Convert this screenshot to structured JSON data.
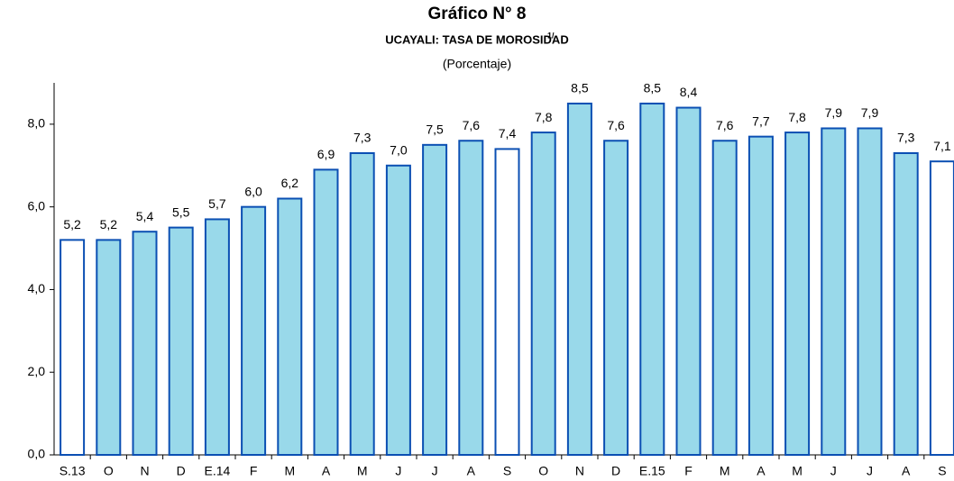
{
  "chart_data": {
    "type": "bar",
    "title": "Gráfico N° 8",
    "subtitle": "UCAYALI: TASA DE MOROSIDAD",
    "title_note": "1/",
    "unit_label": "(Porcentaje)",
    "categories": [
      "S.13",
      "O",
      "N",
      "D",
      "E.14",
      "F",
      "M",
      "A",
      "M",
      "J",
      "J",
      "A",
      "S",
      "O",
      "N",
      "D",
      "E.15",
      "F",
      "M",
      "A",
      "M",
      "J",
      "J",
      "A",
      "S"
    ],
    "values": [
      5.2,
      5.2,
      5.4,
      5.5,
      5.7,
      6.0,
      6.2,
      6.9,
      7.3,
      7.0,
      7.5,
      7.6,
      7.4,
      7.8,
      8.5,
      7.6,
      8.5,
      8.4,
      7.6,
      7.7,
      7.8,
      7.9,
      7.9,
      7.3,
      7.1
    ],
    "value_labels": [
      "5,2",
      "5,2",
      "5,4",
      "5,5",
      "5,7",
      "6,0",
      "6,2",
      "6,9",
      "7,3",
      "7,0",
      "7,5",
      "7,6",
      "7,4",
      "7,8",
      "8,5",
      "7,6",
      "8,5",
      "8,4",
      "7,6",
      "7,7",
      "7,8",
      "7,9",
      "7,9",
      "7,3",
      "7,1"
    ],
    "colors": [
      "#ffffff",
      "#99d9ea",
      "#99d9ea",
      "#99d9ea",
      "#99d9ea",
      "#99d9ea",
      "#99d9ea",
      "#99d9ea",
      "#99d9ea",
      "#99d9ea",
      "#99d9ea",
      "#99d9ea",
      "#ffffff",
      "#99d9ea",
      "#99d9ea",
      "#99d9ea",
      "#99d9ea",
      "#99d9ea",
      "#99d9ea",
      "#99d9ea",
      "#99d9ea",
      "#99d9ea",
      "#99d9ea",
      "#99d9ea",
      "#ffffff"
    ],
    "edge_color": "#0b4fb3",
    "ylim": [
      0,
      9
    ],
    "yticks": [
      {
        "value": 0,
        "label": "0,0"
      },
      {
        "value": 2,
        "label": "2,0"
      },
      {
        "value": 4,
        "label": "4,0"
      },
      {
        "value": 6,
        "label": "6,0"
      },
      {
        "value": 8,
        "label": "8,0"
      }
    ],
    "grid": false
  }
}
